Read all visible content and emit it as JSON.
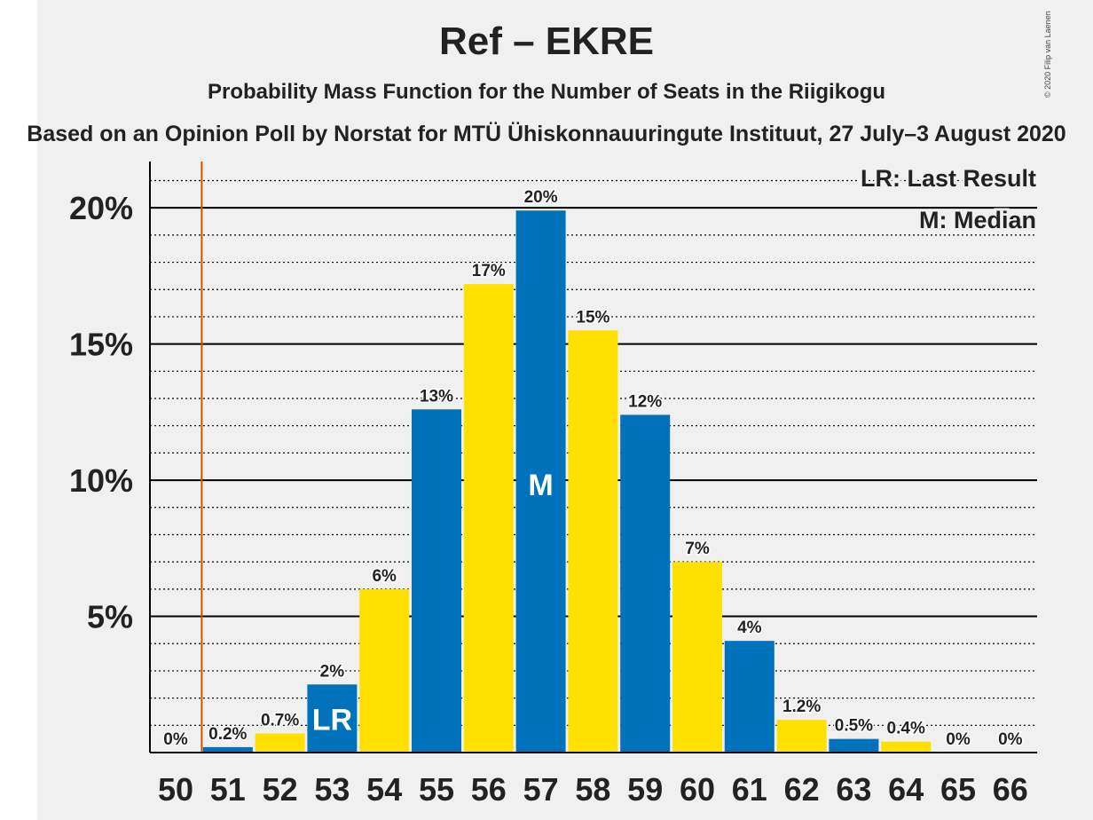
{
  "chart_data": {
    "type": "bar",
    "title": "Ref – EKRE",
    "subtitle": "Probability Mass Function for the Number of Seats in the Riigikogu",
    "source": "Based on an Opinion Poll by Norstat for MTÜ Ühiskonnauuringute Instituut, 27 July–3 August 2020",
    "copyright": "© 2020 Filip van Laenen",
    "categories": [
      "50",
      "51",
      "52",
      "53",
      "54",
      "55",
      "56",
      "57",
      "58",
      "59",
      "60",
      "61",
      "62",
      "63",
      "64",
      "65",
      "66"
    ],
    "values": [
      0,
      0.2,
      0.7,
      2.5,
      6.0,
      12.6,
      17.2,
      19.9,
      15.5,
      12.4,
      7.0,
      4.1,
      1.2,
      0.5,
      0.4,
      0,
      0
    ],
    "value_labels": [
      "0%",
      "0.2%",
      "0.7%",
      "2%",
      "6%",
      "13%",
      "17%",
      "20%",
      "15%",
      "12%",
      "7%",
      "4%",
      "1.2%",
      "0.5%",
      "0.4%",
      "0%",
      "0%"
    ],
    "yticks": [
      5,
      10,
      15,
      20
    ],
    "ytick_labels": [
      "5%",
      "10%",
      "15%",
      "20%"
    ],
    "ylim": [
      0,
      21.7
    ],
    "colors": {
      "blue": "#0072bb",
      "yellow": "#ffe000",
      "last_result_line": "#cc5500",
      "axis": "#000000"
    },
    "last_result": {
      "seat": "53",
      "line_after_seat": "50",
      "label": "LR"
    },
    "median": {
      "seat": "57",
      "label": "M"
    },
    "legend": [
      "LR: Last Result",
      "M: Median"
    ],
    "legend_position": "top-right",
    "grid": true
  }
}
